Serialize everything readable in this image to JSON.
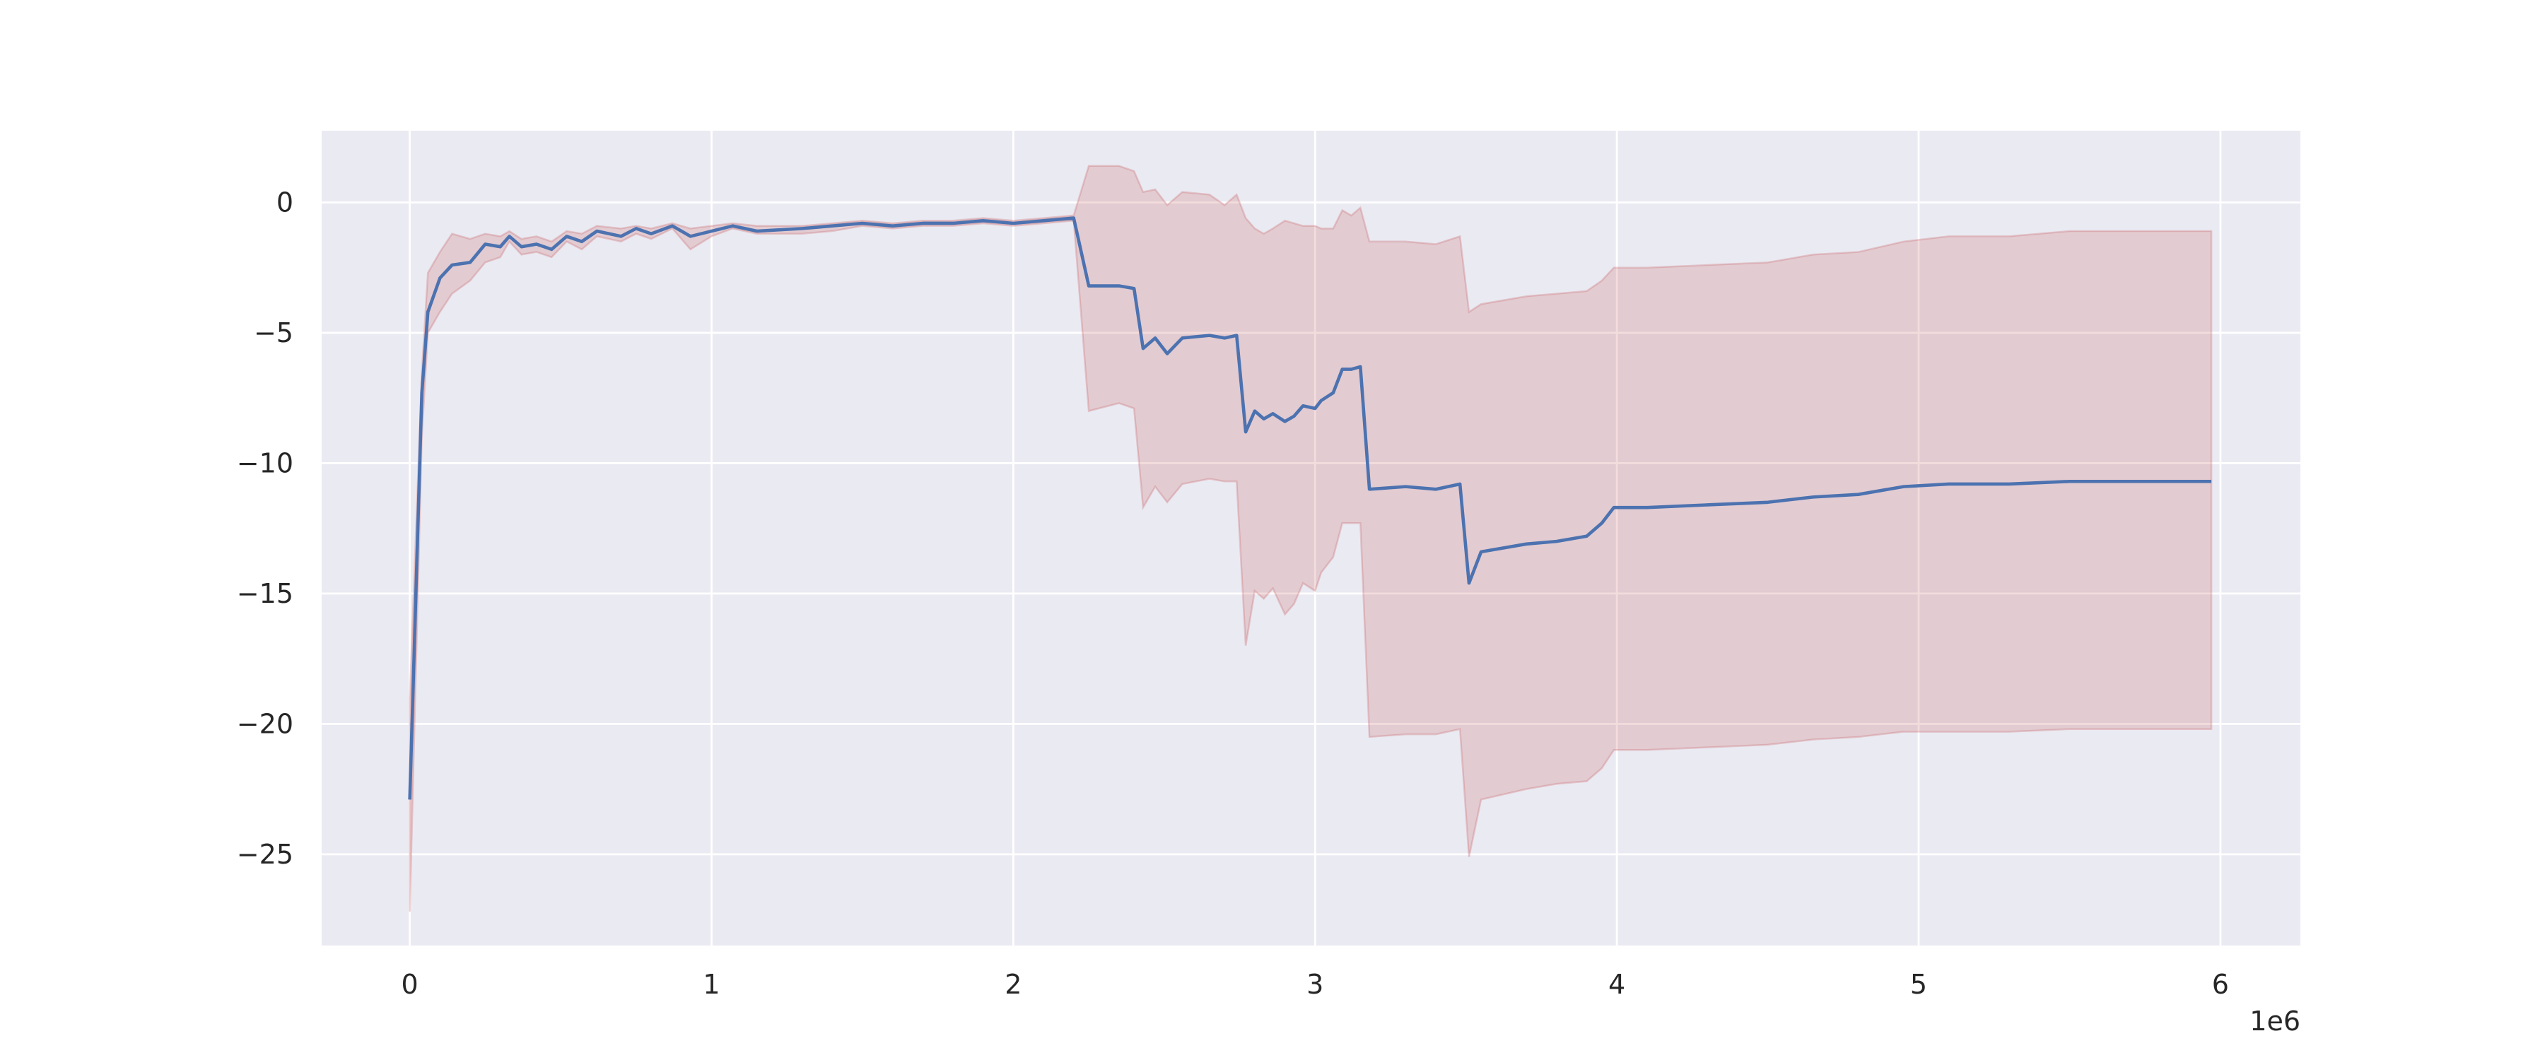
{
  "chart_data": {
    "type": "line",
    "x": [
      0,
      40000,
      60000,
      100000,
      140000,
      200000,
      250000,
      300000,
      330000,
      370000,
      420000,
      470000,
      520000,
      570000,
      620000,
      700000,
      750000,
      800000,
      870000,
      930000,
      1000000,
      1070000,
      1150000,
      1300000,
      1400000,
      1500000,
      1600000,
      1700000,
      1800000,
      1900000,
      2000000,
      2100000,
      2200000,
      2250000,
      2350000,
      2400000,
      2430000,
      2470000,
      2510000,
      2560000,
      2650000,
      2700000,
      2740000,
      2770000,
      2800000,
      2830000,
      2860000,
      2900000,
      2930000,
      2960000,
      3000000,
      3020000,
      3060000,
      3090000,
      3120000,
      3150000,
      3180000,
      3300000,
      3400000,
      3480000,
      3510000,
      3550000,
      3700000,
      3800000,
      3900000,
      3950000,
      3990000,
      4100000,
      4300000,
      4500000,
      4650000,
      4800000,
      4950000,
      5100000,
      5300000,
      5500000,
      5700000,
      5970000
    ],
    "values": [
      -22.9,
      -7.3,
      -4.2,
      -2.9,
      -2.4,
      -2.3,
      -1.6,
      -1.7,
      -1.3,
      -1.7,
      -1.6,
      -1.8,
      -1.3,
      -1.5,
      -1.1,
      -1.3,
      -1.0,
      -1.2,
      -0.9,
      -1.3,
      -1.1,
      -0.9,
      -1.1,
      -1.0,
      -0.9,
      -0.8,
      -0.9,
      -0.8,
      -0.8,
      -0.7,
      -0.8,
      -0.7,
      -0.6,
      -3.2,
      -3.2,
      -3.3,
      -5.6,
      -5.2,
      -5.8,
      -5.2,
      -5.1,
      -5.2,
      -5.1,
      -8.8,
      -8.0,
      -8.3,
      -8.1,
      -8.4,
      -8.2,
      -7.8,
      -7.9,
      -7.6,
      -7.3,
      -6.4,
      -6.4,
      -6.3,
      -11.0,
      -10.9,
      -11.0,
      -10.8,
      -14.6,
      -13.4,
      -13.1,
      -13.0,
      -12.8,
      -12.3,
      -11.7,
      -11.7,
      -11.6,
      -11.5,
      -11.3,
      -11.2,
      -10.9,
      -10.8,
      -10.8,
      -10.7,
      -10.7,
      -10.7
    ],
    "band_lower": [
      -27.2,
      -9.0,
      -5.0,
      -4.2,
      -3.5,
      -3.0,
      -2.3,
      -2.1,
      -1.5,
      -2.0,
      -1.9,
      -2.1,
      -1.5,
      -1.8,
      -1.3,
      -1.5,
      -1.2,
      -1.4,
      -1.0,
      -1.8,
      -1.3,
      -1.0,
      -1.2,
      -1.2,
      -1.1,
      -0.9,
      -1.0,
      -0.9,
      -0.9,
      -0.8,
      -0.9,
      -0.8,
      -0.7,
      -8.0,
      -7.7,
      -7.9,
      -11.7,
      -10.9,
      -11.5,
      -10.8,
      -10.6,
      -10.7,
      -10.7,
      -17.0,
      -14.9,
      -15.2,
      -14.8,
      -15.8,
      -15.4,
      -14.6,
      -14.9,
      -14.2,
      -13.6,
      -12.3,
      -12.3,
      -12.3,
      -20.5,
      -20.4,
      -20.4,
      -20.2,
      -25.1,
      -22.9,
      -22.5,
      -22.3,
      -22.2,
      -21.7,
      -21.0,
      -21.0,
      -20.9,
      -20.8,
      -20.6,
      -20.5,
      -20.3,
      -20.3,
      -20.3,
      -20.2,
      -20.2,
      -20.2
    ],
    "band_upper": [
      -19.0,
      -6.5,
      -2.7,
      -1.9,
      -1.2,
      -1.4,
      -1.2,
      -1.3,
      -1.1,
      -1.4,
      -1.3,
      -1.5,
      -1.1,
      -1.2,
      -0.9,
      -1.0,
      -0.9,
      -1.0,
      -0.8,
      -1.0,
      -0.9,
      -0.8,
      -0.9,
      -0.9,
      -0.8,
      -0.7,
      -0.8,
      -0.7,
      -0.7,
      -0.6,
      -0.7,
      -0.6,
      -0.5,
      1.4,
      1.4,
      1.2,
      0.4,
      0.5,
      -0.1,
      0.4,
      0.3,
      -0.1,
      0.3,
      -0.6,
      -1.0,
      -1.2,
      -1.0,
      -0.7,
      -0.8,
      -0.9,
      -0.9,
      -1.0,
      -1.0,
      -0.3,
      -0.5,
      -0.2,
      -1.5,
      -1.5,
      -1.6,
      -1.3,
      -4.2,
      -3.9,
      -3.6,
      -3.5,
      -3.4,
      -3.0,
      -2.5,
      -2.5,
      -2.4,
      -2.3,
      -2.0,
      -1.9,
      -1.5,
      -1.3,
      -1.3,
      -1.1,
      -1.1,
      -1.1
    ],
    "color": "#4c72b0",
    "band_color": "#c44e52",
    "background": "#eaeaf2",
    "grid": true,
    "xlim": [
      -292000,
      6265000
    ],
    "ylim": [
      -28.5,
      2.75
    ],
    "xticks": [
      0,
      {
        "value": 1000000,
        "label": "1"
      },
      {
        "value": 2000000,
        "label": "2"
      },
      {
        "value": 3000000,
        "label": "3"
      },
      {
        "value": 4000000,
        "label": "4"
      },
      {
        "value": 5000000,
        "label": "5"
      },
      {
        "value": 6000000,
        "label": "6"
      }
    ],
    "yticks": [
      {
        "value": -25,
        "label": "−25"
      },
      {
        "value": -20,
        "label": "−20"
      },
      {
        "value": -15,
        "label": "−15"
      },
      {
        "value": -10,
        "label": "−10"
      },
      {
        "value": -5,
        "label": "−5"
      },
      0
    ],
    "x_offset_label": "1e6"
  }
}
